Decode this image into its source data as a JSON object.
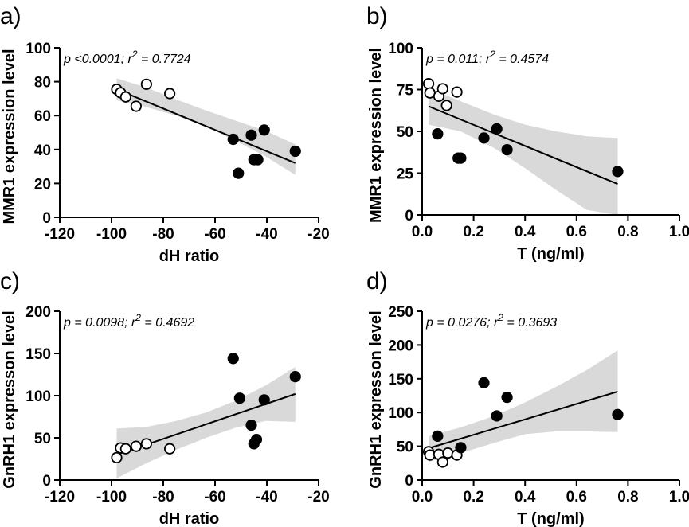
{
  "chart_data": [
    {
      "type": "scatter",
      "panel_label": "a)",
      "xlabel": "dH ratio",
      "ylabel": "MMR1 expression level",
      "xlim": [
        -120,
        -20
      ],
      "ylim": [
        0,
        100
      ],
      "xticks": [
        -120,
        -100,
        -80,
        -60,
        -40,
        -20
      ],
      "yticks": [
        0,
        20,
        40,
        60,
        80,
        100
      ],
      "annotation": {
        "p": "p <0.0001; r",
        "sup": "2",
        "eq": " = 0.7724"
      },
      "series": [
        {
          "name": "open",
          "marker": "open",
          "points": [
            [
              -98,
              75.5
            ],
            [
              -96.5,
              73.5
            ],
            [
              -94.5,
              71
            ],
            [
              -90.5,
              65.5
            ],
            [
              -86.5,
              78.5
            ],
            [
              -77.5,
              73
            ]
          ]
        },
        {
          "name": "filled",
          "marker": "filled",
          "points": [
            [
              -53,
              46
            ],
            [
              -51,
              26
            ],
            [
              -46,
              48.5
            ],
            [
              -45,
              34
            ],
            [
              -43.5,
              34
            ],
            [
              -41,
              51.5
            ],
            [
              -29,
              39
            ]
          ]
        }
      ],
      "fit": {
        "x": [
          -98,
          -29
        ],
        "y": [
          75.5,
          32
        ]
      },
      "band": {
        "x": [
          -98,
          -86.5,
          -75,
          -63.5,
          -52,
          -40.5,
          -29
        ],
        "lower": [
          69,
          65,
          60,
          53.5,
          45,
          36,
          25
        ],
        "upper": [
          82,
          76.5,
          69.5,
          63,
          57,
          51,
          43
        ]
      }
    },
    {
      "type": "scatter",
      "panel_label": "b)",
      "xlabel": "T (ng/ml)",
      "ylabel": "MMR1 expression level",
      "xlim": [
        0,
        1.0
      ],
      "ylim": [
        0,
        100
      ],
      "xticks": [
        0.0,
        0.2,
        0.4,
        0.6,
        0.8,
        1.0
      ],
      "xtick_labels": [
        "0.0",
        "0.2",
        "0.4",
        "0.6",
        "0.8",
        "1.0"
      ],
      "yticks": [
        0,
        25,
        50,
        75,
        100
      ],
      "annotation": {
        "p": "p = 0.011; r",
        "sup": "2",
        "eq": " = 0.4574"
      },
      "series": [
        {
          "name": "open",
          "marker": "open",
          "points": [
            [
              0.025,
              78.5
            ],
            [
              0.03,
              73
            ],
            [
              0.065,
              71
            ],
            [
              0.08,
              75.5
            ],
            [
              0.095,
              65.5
            ],
            [
              0.135,
              73.5
            ]
          ]
        },
        {
          "name": "filled",
          "marker": "filled",
          "points": [
            [
              0.06,
              48.5
            ],
            [
              0.14,
              34
            ],
            [
              0.15,
              34
            ],
            [
              0.24,
              46
            ],
            [
              0.29,
              51.5
            ],
            [
              0.33,
              39
            ],
            [
              0.76,
              26
            ]
          ]
        }
      ],
      "fit": {
        "x": [
          0.025,
          0.76
        ],
        "y": [
          65,
          18.5
        ]
      },
      "band": {
        "x": [
          0.025,
          0.15,
          0.28,
          0.4,
          0.52,
          0.64,
          0.76
        ],
        "lower": [
          54,
          50,
          40,
          28,
          15,
          3,
          -10
        ],
        "upper": [
          76,
          68,
          60,
          54,
          50,
          47,
          46
        ]
      }
    },
    {
      "type": "scatter",
      "panel_label": "c)",
      "xlabel": "dH ratio",
      "ylabel": "GnRH1 expresson level",
      "xlim": [
        -120,
        -20
      ],
      "ylim": [
        0,
        200
      ],
      "xticks": [
        -120,
        -100,
        -80,
        -60,
        -40,
        -20
      ],
      "yticks": [
        0,
        50,
        100,
        150,
        200
      ],
      "annotation": {
        "p": "p = 0.0098; r",
        "sup": "2",
        "eq": " = 0.4692"
      },
      "series": [
        {
          "name": "open",
          "marker": "open",
          "points": [
            [
              -98,
              26.5
            ],
            [
              -96.5,
              38
            ],
            [
              -94.5,
              37
            ],
            [
              -90.5,
              40
            ],
            [
              -86.5,
              43
            ],
            [
              -77.5,
              37
            ]
          ]
        },
        {
          "name": "filled",
          "marker": "filled",
          "points": [
            [
              -53,
              144
            ],
            [
              -50.5,
              97
            ],
            [
              -46,
              65
            ],
            [
              -45,
              43
            ],
            [
              -44,
              48
            ],
            [
              -41,
              95
            ],
            [
              -29,
              122.5
            ]
          ]
        }
      ],
      "fit": {
        "x": [
          -98,
          -29
        ],
        "y": [
          30,
          102
        ]
      },
      "band": {
        "x": [
          -98,
          -86.5,
          -75,
          -63.5,
          -52,
          -40.5,
          -29
        ],
        "lower": [
          2,
          20,
          36,
          50,
          62,
          70,
          69
        ],
        "upper": [
          61,
          63,
          70,
          80,
          94,
          112,
          134
        ]
      }
    },
    {
      "type": "scatter",
      "panel_label": "d)",
      "xlabel": "T (ng/ml)",
      "ylabel": "GnRH1 expresson level",
      "xlim": [
        0,
        1.0
      ],
      "ylim": [
        0,
        250
      ],
      "xticks": [
        0.0,
        0.2,
        0.4,
        0.6,
        0.8,
        1.0
      ],
      "xtick_labels": [
        "0.0",
        "0.2",
        "0.4",
        "0.6",
        "0.8",
        "1.0"
      ],
      "yticks": [
        0,
        50,
        100,
        150,
        200,
        250
      ],
      "annotation": {
        "p": "p = 0.0276; r",
        "sup": "2",
        "eq": " = 0.3693"
      },
      "series": [
        {
          "name": "open",
          "marker": "open",
          "points": [
            [
              0.025,
              42
            ],
            [
              0.03,
              37
            ],
            [
              0.065,
              38
            ],
            [
              0.08,
              26.5
            ],
            [
              0.1,
              40
            ],
            [
              0.135,
              37
            ]
          ]
        },
        {
          "name": "filled",
          "marker": "filled",
          "points": [
            [
              0.06,
              65
            ],
            [
              0.15,
              48
            ],
            [
              0.24,
              144
            ],
            [
              0.29,
              95
            ],
            [
              0.33,
              122.5
            ],
            [
              0.76,
              97
            ]
          ]
        }
      ],
      "fit": {
        "x": [
          0.025,
          0.76
        ],
        "y": [
          47,
          131
        ]
      },
      "band": {
        "x": [
          0.025,
          0.15,
          0.28,
          0.4,
          0.52,
          0.64,
          0.76
        ],
        "lower": [
          27,
          40,
          55,
          68,
          72,
          72,
          71
        ],
        "upper": [
          65,
          78,
          95,
          115,
          138,
          163,
          192
        ]
      }
    }
  ]
}
